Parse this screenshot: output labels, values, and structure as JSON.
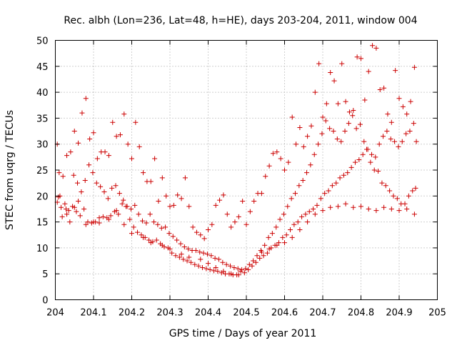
{
  "chart_data": {
    "type": "scatter",
    "title": "Rec. albh (Lon=236, Lat=48, h=HE), days 203-204, 2011, window 004",
    "xlabel": "GPS time / Days of year 2011",
    "ylabel": "STEC from uqrg / TECUs",
    "xlim": [
      204,
      205
    ],
    "ylim": [
      0,
      50
    ],
    "xticks": [
      204,
      204.1,
      204.2,
      204.3,
      204.4,
      204.5,
      204.6,
      204.7,
      204.8,
      204.9,
      205
    ],
    "xtick_labels": [
      "204",
      "204.1",
      "204.2",
      "204.3",
      "204.4",
      "204.5",
      "204.6",
      "204.7",
      "204.8",
      "204.9",
      "205"
    ],
    "yticks": [
      0,
      5,
      10,
      15,
      20,
      25,
      30,
      35,
      40,
      45,
      50
    ],
    "ytick_labels": [
      "0",
      "5",
      "10",
      "15",
      "20",
      "25",
      "30",
      "35",
      "40",
      "45",
      "50"
    ],
    "grid": true,
    "marker": "plus",
    "marker_color": "#cc0000",
    "x": [
      204.005,
      204.01,
      204.02,
      204.03,
      204.04,
      204.05,
      204.06,
      204.07,
      204.08,
      204.09,
      204.1,
      204.11,
      204.12,
      204.13,
      204.14,
      204.15,
      204.16,
      204.17,
      204.18,
      204.19,
      204.2,
      204.21,
      204.22,
      204.23,
      204.24,
      204.25,
      204.26,
      204.27,
      204.28,
      204.29,
      204.3,
      204.31,
      204.32,
      204.33,
      204.34,
      204.35,
      204.36,
      204.37,
      204.38,
      204.39,
      204.4,
      204.41,
      204.42,
      204.43,
      204.44,
      204.45,
      204.46,
      204.47,
      204.48,
      204.49,
      204.5,
      204.51,
      204.52,
      204.53,
      204.54,
      204.55,
      204.56,
      204.57,
      204.58,
      204.59,
      204.6,
      204.61,
      204.62,
      204.63,
      204.64,
      204.65,
      204.66,
      204.67,
      204.68,
      204.69,
      204.7,
      204.71,
      204.72,
      204.73,
      204.74,
      204.75,
      204.76,
      204.77,
      204.78,
      204.79,
      204.8,
      204.81,
      204.82,
      204.83,
      204.84,
      204.85,
      204.86,
      204.87,
      204.88,
      204.89,
      204.9,
      204.91,
      204.92,
      204.93,
      204.94,
      204.945,
      204.008,
      204.018,
      204.028,
      204.038,
      204.048,
      204.058,
      204.068,
      204.078,
      204.088,
      204.098,
      204.108,
      204.118,
      204.128,
      204.138,
      204.148,
      204.158,
      204.168,
      204.178,
      204.188,
      204.198,
      204.208,
      204.218,
      204.228,
      204.238,
      204.248,
      204.258,
      204.268,
      204.278,
      204.288,
      204.298,
      204.308,
      204.318,
      204.328,
      204.338,
      204.348,
      204.358,
      204.368,
      204.378,
      204.388,
      204.398,
      204.408,
      204.418,
      204.428,
      204.438,
      204.448,
      204.458,
      204.468,
      204.478,
      204.488,
      204.498,
      204.508,
      204.518,
      204.528,
      204.538,
      204.548,
      204.558,
      204.568,
      204.578,
      204.588,
      204.598,
      204.608,
      204.618,
      204.628,
      204.638,
      204.648,
      204.658,
      204.668,
      204.678,
      204.688,
      204.698,
      204.708,
      204.718,
      204.728,
      204.738,
      204.748,
      204.758,
      204.768,
      204.778,
      204.788,
      204.798,
      204.808,
      204.818,
      204.828,
      204.838,
      204.848,
      204.858,
      204.868,
      204.878,
      204.888,
      204.898,
      204.908,
      204.918,
      204.928,
      204.938,
      204.012,
      204.025,
      204.035,
      204.045,
      204.055,
      204.065,
      204.075,
      204.085,
      204.095,
      204.105,
      204.115,
      204.125,
      204.135,
      204.145,
      204.155,
      204.165,
      204.175,
      204.185,
      204.195,
      204.205,
      204.215,
      204.225,
      204.235,
      204.245,
      204.255,
      204.265,
      204.275,
      204.285,
      204.295,
      204.305,
      204.315,
      204.325,
      204.335,
      204.345,
      204.355,
      204.365,
      204.375,
      204.385,
      204.395,
      204.405,
      204.415,
      204.425,
      204.435,
      204.445,
      204.455,
      204.465,
      204.475,
      204.485,
      204.495,
      204.505,
      204.515,
      204.525,
      204.535,
      204.545,
      204.555,
      204.565,
      204.575,
      204.585,
      204.595,
      204.605,
      204.615,
      204.625,
      204.635,
      204.645,
      204.655,
      204.665,
      204.675,
      204.685,
      204.695,
      204.705,
      204.715,
      204.725,
      204.735,
      204.745,
      204.755,
      204.765,
      204.775,
      204.785,
      204.795,
      204.805,
      204.815,
      204.825,
      204.835,
      204.845,
      204.855,
      204.865,
      204.875,
      204.885,
      204.895,
      204.905,
      204.915,
      204.925,
      204.935,
      204.943,
      204.005,
      204.015,
      204.03,
      204.05,
      204.06,
      204.08,
      204.1,
      204.115,
      204.14,
      204.16,
      204.18,
      204.2,
      204.23,
      204.25,
      204.28,
      204.3,
      204.33,
      204.35,
      204.38,
      204.4,
      204.42,
      204.44,
      204.46,
      204.48,
      204.54,
      204.56,
      204.58,
      204.6,
      204.62,
      204.64,
      204.66,
      204.68,
      204.7,
      204.72,
      204.74,
      204.76,
      204.78,
      204.8,
      204.82,
      204.84,
      204.86,
      204.88,
      204.9,
      204.92,
      204.94
    ],
    "y": [
      30.0,
      24.5,
      23.8,
      27.8,
      28.5,
      32.5,
      30.2,
      36.0,
      38.8,
      31.0,
      32.2,
      27.2,
      28.5,
      28.5,
      27.8,
      34.2,
      31.5,
      31.8,
      35.8,
      30.0,
      27.2,
      34.2,
      29.5,
      24.5,
      22.8,
      22.8,
      27.2,
      19.0,
      23.5,
      20.0,
      18.0,
      18.2,
      20.2,
      19.5,
      23.5,
      18.0,
      14.0,
      13.0,
      12.5,
      11.8,
      13.5,
      14.5,
      18.2,
      19.2,
      20.2,
      16.5,
      14.0,
      15.0,
      16.0,
      19.0,
      14.5,
      17.0,
      19.0,
      20.5,
      20.5,
      23.8,
      25.8,
      28.2,
      28.5,
      27.2,
      25.0,
      26.5,
      35.2,
      30.0,
      33.2,
      29.5,
      31.5,
      33.5,
      40.0,
      45.5,
      35.2,
      37.8,
      43.8,
      42.2,
      37.8,
      45.5,
      38.2,
      36.2,
      36.5,
      46.8,
      46.5,
      38.5,
      44.0,
      49.0,
      48.5,
      40.5,
      40.8,
      35.8,
      34.2,
      44.2,
      38.8,
      37.2,
      35.8,
      38.2,
      44.8,
      30.5,
      19.8,
      16.0,
      17.5,
      15.0,
      24.0,
      22.5,
      20.8,
      23.0,
      26.0,
      24.5,
      22.5,
      21.8,
      20.8,
      19.5,
      21.5,
      22.0,
      20.5,
      19.2,
      18.0,
      17.5,
      18.2,
      16.5,
      15.2,
      14.8,
      16.5,
      15.0,
      14.5,
      13.8,
      14.0,
      12.8,
      12.2,
      11.5,
      10.8,
      10.2,
      9.8,
      9.5,
      9.5,
      9.2,
      9.0,
      8.8,
      8.5,
      8.0,
      7.8,
      7.2,
      6.8,
      6.5,
      6.2,
      6.0,
      5.8,
      6.0,
      6.8,
      7.5,
      8.5,
      9.5,
      10.5,
      12.0,
      12.8,
      14.0,
      15.5,
      16.5,
      18.0,
      19.5,
      20.5,
      22.0,
      23.0,
      24.5,
      26.0,
      28.0,
      30.0,
      32.0,
      34.5,
      33.0,
      32.5,
      31.0,
      30.5,
      32.5,
      34.0,
      35.5,
      33.0,
      33.8,
      30.5,
      29.0,
      28.0,
      27.5,
      30.0,
      31.5,
      32.5,
      31.0,
      30.5,
      29.5,
      30.5,
      32.0,
      32.5,
      34.0,
      20.0,
      18.5,
      17.2,
      18.0,
      17.0,
      16.2,
      17.5,
      15.0,
      14.8,
      15.0,
      14.8,
      16.0,
      15.8,
      16.2,
      17.0,
      16.5,
      18.5,
      18.0,
      15.5,
      14.0,
      13.0,
      12.5,
      12.0,
      11.5,
      11.2,
      11.5,
      10.8,
      10.2,
      10.0,
      9.0,
      8.5,
      8.2,
      7.8,
      7.5,
      7.2,
      6.8,
      6.5,
      6.2,
      6.0,
      5.8,
      5.6,
      5.5,
      5.2,
      5.0,
      5.0,
      4.8,
      4.8,
      5.5,
      5.2,
      5.8,
      6.5,
      7.2,
      8.0,
      8.5,
      9.0,
      10.0,
      10.5,
      11.0,
      12.0,
      12.5,
      13.5,
      14.5,
      15.0,
      16.0,
      16.5,
      17.0,
      17.5,
      18.2,
      19.5,
      20.5,
      21.0,
      22.0,
      22.5,
      23.5,
      24.0,
      24.5,
      25.5,
      26.5,
      27.0,
      28.0,
      29.0,
      26.5,
      25.0,
      24.8,
      22.5,
      22.0,
      21.0,
      20.0,
      19.5,
      18.5,
      18.5,
      20.0,
      21.0,
      21.5,
      18.8,
      17.8,
      16.5,
      17.8,
      19.0,
      14.5,
      15.0,
      15.8,
      15.5,
      17.2,
      14.5,
      12.8,
      12.0,
      11.0,
      10.5,
      9.8,
      8.8,
      8.2,
      7.8,
      7.0,
      6.2,
      5.5,
      5.0,
      4.8,
      9.2,
      9.8,
      10.5,
      11.0,
      12.0,
      13.5,
      15.0,
      16.5,
      17.2,
      17.8,
      18.0,
      18.5,
      17.8,
      18.0,
      17.5,
      17.2,
      17.8,
      17.5,
      17.2,
      17.5,
      16.5
    ]
  }
}
